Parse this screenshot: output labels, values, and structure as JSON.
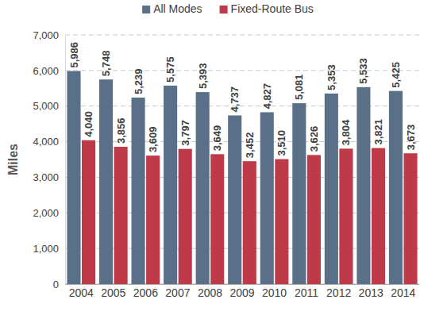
{
  "chart_data": {
    "type": "bar",
    "y_label": "Miles",
    "categories": [
      "2004",
      "2005",
      "2006",
      "2007",
      "2008",
      "2009",
      "2010",
      "2011",
      "2012",
      "2013",
      "2014"
    ],
    "series": [
      {
        "name": "All Modes",
        "color": "#5a7089",
        "values": [
          5986,
          5748,
          5239,
          5575,
          5393,
          4737,
          4827,
          5081,
          5353,
          5533,
          5425
        ],
        "value_labels": [
          "5,986",
          "5,748",
          "5,239",
          "5,575",
          "5,393",
          "4,737",
          "4,827",
          "5,081",
          "5,353",
          "5,533",
          "5,425"
        ]
      },
      {
        "name": "Fixed-Route Bus",
        "color": "#be3a48",
        "values": [
          4040,
          3856,
          3609,
          3797,
          3649,
          3452,
          3510,
          3626,
          3804,
          3821,
          3673
        ],
        "value_labels": [
          "4,040",
          "3,856",
          "3,609",
          "3,797",
          "3,649",
          "3,452",
          "3,510",
          "3,626",
          "3,804",
          "3,821",
          "3,673"
        ]
      }
    ],
    "ylim": [
      0,
      7000
    ],
    "yticks": [
      0,
      {
        "value": 1000,
        "label": "1,000"
      },
      {
        "value": 2000,
        "label": "2,000"
      },
      {
        "value": 3000,
        "label": "3,000"
      },
      {
        "value": 4000,
        "label": "4,000"
      },
      {
        "value": 5000,
        "label": "5,000"
      },
      {
        "value": 6000,
        "label": "6,000"
      },
      {
        "value": 7000,
        "label": "7,000"
      }
    ],
    "grid": true,
    "legend": "top",
    "data_labels": true
  }
}
